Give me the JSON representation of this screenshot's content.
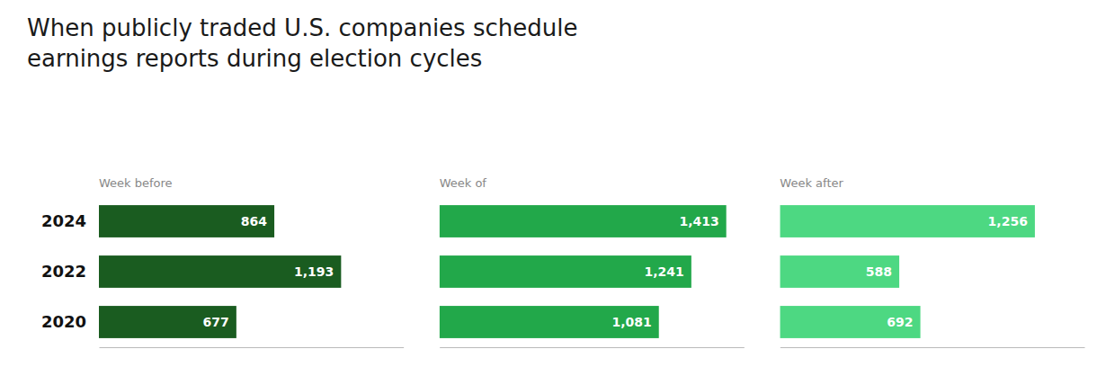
{
  "chart_data": {
    "type": "bar",
    "orientation": "horizontal",
    "title": "When publicly traded U.S. companies schedule",
    "subtitle": "earnings reports during election cycles",
    "categories": [
      "2024",
      "2022",
      "2020"
    ],
    "series": [
      {
        "name": "Week before",
        "color": "#1a5c20",
        "values": [
          864,
          1193,
          677
        ],
        "value_labels": [
          "864",
          "1,193",
          "677"
        ]
      },
      {
        "name": "Week of",
        "color": "#22a84a",
        "values": [
          1413,
          1241,
          1081
        ],
        "value_labels": [
          "1,413",
          "1,241",
          "1,081"
        ]
      },
      {
        "name": "Week after",
        "color": "#4dd882",
        "values": [
          1256,
          588,
          692
        ],
        "value_labels": [
          "1,256",
          "588",
          "692"
        ]
      }
    ],
    "xlim": [
      0,
      1500
    ],
    "grid": false,
    "data_labels": true,
    "tick_labels": "y"
  }
}
